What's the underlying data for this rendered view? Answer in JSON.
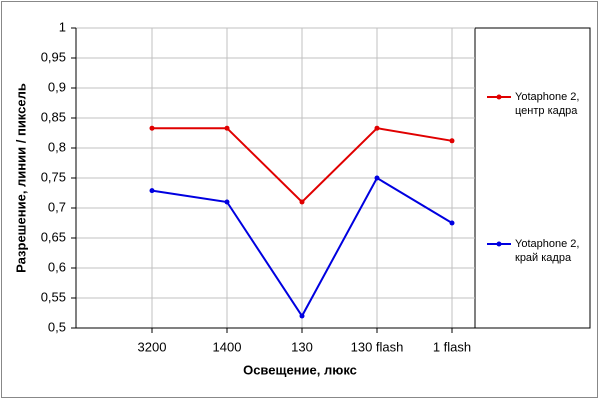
{
  "chart_data": {
    "type": "line",
    "x_label": "Освещение, люкс",
    "y_label": "Разрешение, линии / пиксель",
    "categories": [
      "3200",
      "1400",
      "130",
      "130 flash",
      "1 flash"
    ],
    "series": [
      {
        "name": "Yotaphone 2, центр кадра",
        "color": "#e00000",
        "values": [
          0.833,
          0.833,
          0.71,
          0.833,
          0.812
        ]
      },
      {
        "name": "Yotaphone 2, край кадра",
        "color": "#0000e0",
        "values": [
          0.729,
          0.71,
          0.52,
          0.75,
          0.675
        ]
      }
    ],
    "ylim": [
      0.5,
      1
    ],
    "yticks": [
      {
        "value": 0.5,
        "label": "0,5"
      },
      {
        "value": 0.55,
        "label": "0,55"
      },
      {
        "value": 0.6,
        "label": "0,6"
      },
      {
        "value": 0.65,
        "label": "0,65"
      },
      {
        "value": 0.7,
        "label": "0,7"
      },
      {
        "value": 0.75,
        "label": "0,75"
      },
      {
        "value": 0.8,
        "label": "0,8"
      },
      {
        "value": 0.85,
        "label": "0,85"
      },
      {
        "value": 0.9,
        "label": "0,9"
      },
      {
        "value": 0.95,
        "label": "0,95"
      },
      1
    ],
    "grid": true
  }
}
